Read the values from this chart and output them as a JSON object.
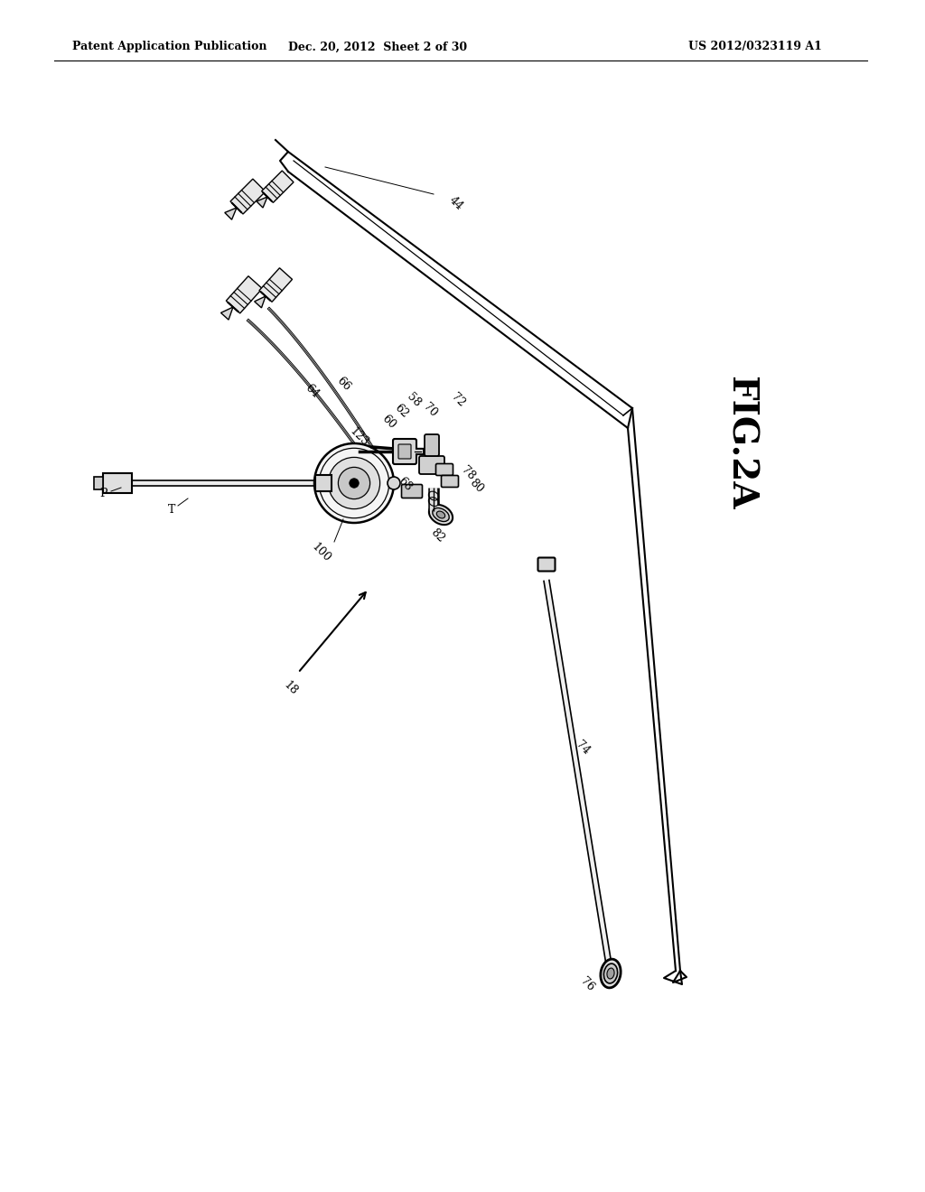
{
  "background_color": "#ffffff",
  "header_left": "Patent Application Publication",
  "header_center": "Dec. 20, 2012  Sheet 2 of 30",
  "header_right": "US 2012/0323119 A1",
  "fig_label": "FIG.2A"
}
